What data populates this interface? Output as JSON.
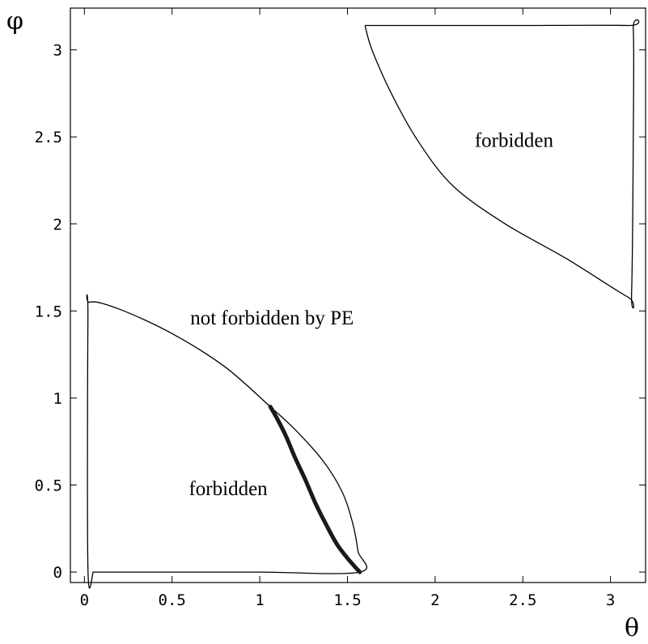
{
  "chart_data": {
    "type": "line",
    "xlabel": "θ",
    "ylabel": "φ",
    "xlim": [
      -0.08,
      3.2
    ],
    "ylim": [
      -0.06,
      3.24
    ],
    "x_ticks": [
      0,
      0.5,
      1,
      1.5,
      2,
      2.5,
      3
    ],
    "y_ticks": [
      0,
      0.5,
      1,
      1.5,
      2,
      2.5,
      3
    ],
    "x_tick_labels": [
      "0",
      "0.5",
      "1",
      "1.5",
      "2",
      "2.5",
      "3"
    ],
    "y_tick_labels": [
      "0",
      "0.5",
      "1",
      "1.5",
      "2",
      "2.5",
      "3"
    ],
    "grid": false,
    "legend": "none",
    "annotations": [
      {
        "text": "forbidden",
        "x": 2.45,
        "y": 2.48
      },
      {
        "text": "not forbidden by PE",
        "x": 1.07,
        "y": 1.46
      },
      {
        "text": "forbidden",
        "x": 0.82,
        "y": 0.48
      }
    ],
    "series": [
      {
        "style": "thin",
        "points": [
          [
            0.05,
            0.0
          ],
          [
            0.02,
            0.02
          ],
          [
            0.02,
            1.45
          ],
          [
            0.03,
            1.55
          ],
          [
            0.2,
            1.51
          ],
          [
            0.5,
            1.37
          ],
          [
            0.8,
            1.18
          ],
          [
            1.06,
            0.95
          ],
          [
            1.2,
            0.82
          ],
          [
            1.36,
            0.64
          ],
          [
            1.47,
            0.46
          ],
          [
            1.53,
            0.28
          ],
          [
            1.56,
            0.12
          ],
          [
            1.57,
            0.0
          ],
          [
            1.0,
            0.0
          ],
          [
            0.5,
            0.0
          ],
          [
            0.1,
            0.0
          ],
          [
            0.05,
            0.0
          ]
        ]
      },
      {
        "style": "thin",
        "points": [
          [
            1.6,
            3.14
          ],
          [
            2.4,
            3.14
          ],
          [
            3.1,
            3.14
          ],
          [
            3.13,
            3.12
          ],
          [
            3.13,
            2.5
          ],
          [
            3.12,
            1.6
          ],
          [
            3.1,
            1.58
          ],
          [
            2.75,
            1.8
          ],
          [
            2.4,
            2.0
          ],
          [
            2.1,
            2.22
          ],
          [
            1.9,
            2.48
          ],
          [
            1.75,
            2.75
          ],
          [
            1.64,
            3.0
          ],
          [
            1.6,
            3.14
          ]
        ]
      },
      {
        "style": "thick",
        "points": [
          [
            1.06,
            0.95
          ],
          [
            1.1,
            0.88
          ],
          [
            1.15,
            0.78
          ],
          [
            1.2,
            0.66
          ],
          [
            1.26,
            0.53
          ],
          [
            1.32,
            0.39
          ],
          [
            1.38,
            0.27
          ],
          [
            1.44,
            0.16
          ],
          [
            1.5,
            0.08
          ],
          [
            1.57,
            0.0
          ]
        ]
      }
    ]
  }
}
